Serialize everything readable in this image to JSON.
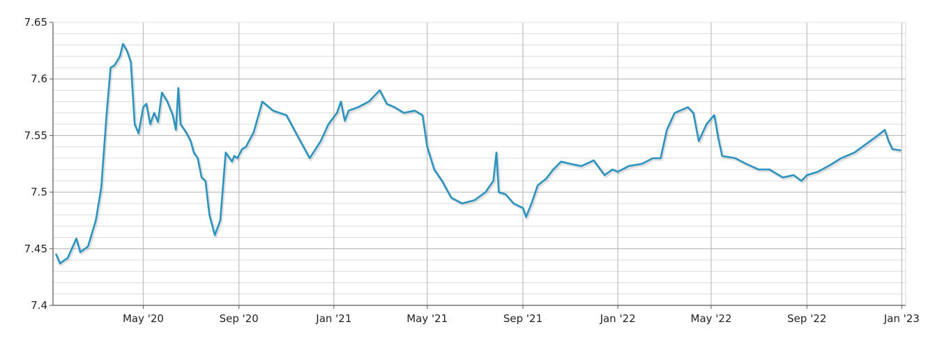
{
  "chart_data": {
    "type": "line",
    "title": "",
    "xlabel": "",
    "ylabel": "",
    "ylim": [
      7.4,
      7.65
    ],
    "xlim": [
      "2020-01-06",
      "2023-01-06"
    ],
    "y_ticks": [
      7.4,
      7.45,
      7.5,
      7.55,
      7.6,
      7.65
    ],
    "y_tick_labels": [
      "7.4",
      "7.45",
      "7.5",
      "7.55",
      "7.6",
      "7.65"
    ],
    "y_minor_step": 0.01,
    "x_ticks": [
      "2020-05-01",
      "2020-09-01",
      "2021-01-01",
      "2021-05-01",
      "2021-09-01",
      "2022-01-01",
      "2022-05-01",
      "2022-09-01",
      "2023-01-01"
    ],
    "x_tick_labels": [
      "May '20",
      "Sep '20",
      "Jan '21",
      "May '21",
      "Sep '21",
      "Jan '22",
      "May '22",
      "Sep '22",
      "Jan '23"
    ],
    "grid": true,
    "line_color": "#2b93c0",
    "series": [
      {
        "x": [
          "2020-01-10",
          "2020-01-15",
          "2020-01-25",
          "2020-02-05",
          "2020-02-10",
          "2020-02-20",
          "2020-03-01",
          "2020-03-08",
          "2020-03-15",
          "2020-03-20",
          "2020-03-25",
          "2020-04-01",
          "2020-04-05",
          "2020-04-10",
          "2020-04-15",
          "2020-04-20",
          "2020-04-25",
          "2020-05-01",
          "2020-05-05",
          "2020-05-10",
          "2020-05-15",
          "2020-05-20",
          "2020-05-25",
          "2020-06-01",
          "2020-06-08",
          "2020-06-12",
          "2020-06-15",
          "2020-06-18",
          "2020-06-25",
          "2020-07-01",
          "2020-07-05",
          "2020-07-10",
          "2020-07-15",
          "2020-07-20",
          "2020-07-25",
          "2020-08-01",
          "2020-08-08",
          "2020-08-15",
          "2020-08-20",
          "2020-08-23",
          "2020-08-26",
          "2020-08-30",
          "2020-09-05",
          "2020-09-10",
          "2020-09-20",
          "2020-10-01",
          "2020-10-15",
          "2020-11-01",
          "2020-11-15",
          "2020-12-01",
          "2020-12-15",
          "2020-12-25",
          "2021-01-05",
          "2021-01-10",
          "2021-01-15",
          "2021-01-20",
          "2021-02-01",
          "2021-02-15",
          "2021-03-01",
          "2021-03-10",
          "2021-03-20",
          "2021-04-01",
          "2021-04-15",
          "2021-04-25",
          "2021-05-01",
          "2021-05-10",
          "2021-05-20",
          "2021-06-01",
          "2021-06-15",
          "2021-07-01",
          "2021-07-15",
          "2021-07-25",
          "2021-07-29",
          "2021-08-01",
          "2021-08-10",
          "2021-08-20",
          "2021-09-01",
          "2021-09-05",
          "2021-09-12",
          "2021-09-20",
          "2021-10-01",
          "2021-10-10",
          "2021-10-20",
          "2021-11-01",
          "2021-11-15",
          "2021-12-01",
          "2021-12-15",
          "2021-12-25",
          "2022-01-01",
          "2022-01-15",
          "2022-02-01",
          "2022-02-15",
          "2022-02-25",
          "2022-03-05",
          "2022-03-15",
          "2022-04-01",
          "2022-04-08",
          "2022-04-15",
          "2022-04-25",
          "2022-05-01",
          "2022-05-05",
          "2022-05-10",
          "2022-05-15",
          "2022-06-01",
          "2022-06-15",
          "2022-07-01",
          "2022-07-15",
          "2022-08-01",
          "2022-08-15",
          "2022-08-25",
          "2022-09-01",
          "2022-09-15",
          "2022-10-01",
          "2022-10-15",
          "2022-11-01",
          "2022-11-15",
          "2022-12-01",
          "2022-12-10",
          "2022-12-15",
          "2022-12-20",
          "2022-12-30"
        ],
        "y": [
          7.445,
          7.437,
          7.442,
          7.459,
          7.447,
          7.452,
          7.475,
          7.504,
          7.57,
          7.61,
          7.612,
          7.62,
          7.631,
          7.625,
          7.615,
          7.56,
          7.552,
          7.575,
          7.578,
          7.56,
          7.57,
          7.562,
          7.588,
          7.58,
          7.568,
          7.555,
          7.592,
          7.56,
          7.553,
          7.545,
          7.535,
          7.53,
          7.513,
          7.51,
          7.48,
          7.462,
          7.475,
          7.535,
          7.53,
          7.527,
          7.532,
          7.53,
          7.538,
          7.54,
          7.553,
          7.58,
          7.572,
          7.568,
          7.55,
          7.53,
          7.545,
          7.56,
          7.57,
          7.58,
          7.563,
          7.572,
          7.575,
          7.58,
          7.59,
          7.578,
          7.575,
          7.57,
          7.572,
          7.568,
          7.54,
          7.52,
          7.51,
          7.495,
          7.49,
          7.493,
          7.5,
          7.51,
          7.535,
          7.5,
          7.498,
          7.49,
          7.486,
          7.478,
          7.49,
          7.506,
          7.512,
          7.52,
          7.527,
          7.525,
          7.523,
          7.528,
          7.515,
          7.52,
          7.518,
          7.523,
          7.525,
          7.53,
          7.53,
          7.555,
          7.57,
          7.575,
          7.57,
          7.545,
          7.56,
          7.565,
          7.568,
          7.548,
          7.532,
          7.53,
          7.525,
          7.52,
          7.52,
          7.513,
          7.515,
          7.51,
          7.515,
          7.518,
          7.524,
          7.53,
          7.535,
          7.542,
          7.55,
          7.555,
          7.545,
          7.538,
          7.537
        ]
      }
    ]
  }
}
